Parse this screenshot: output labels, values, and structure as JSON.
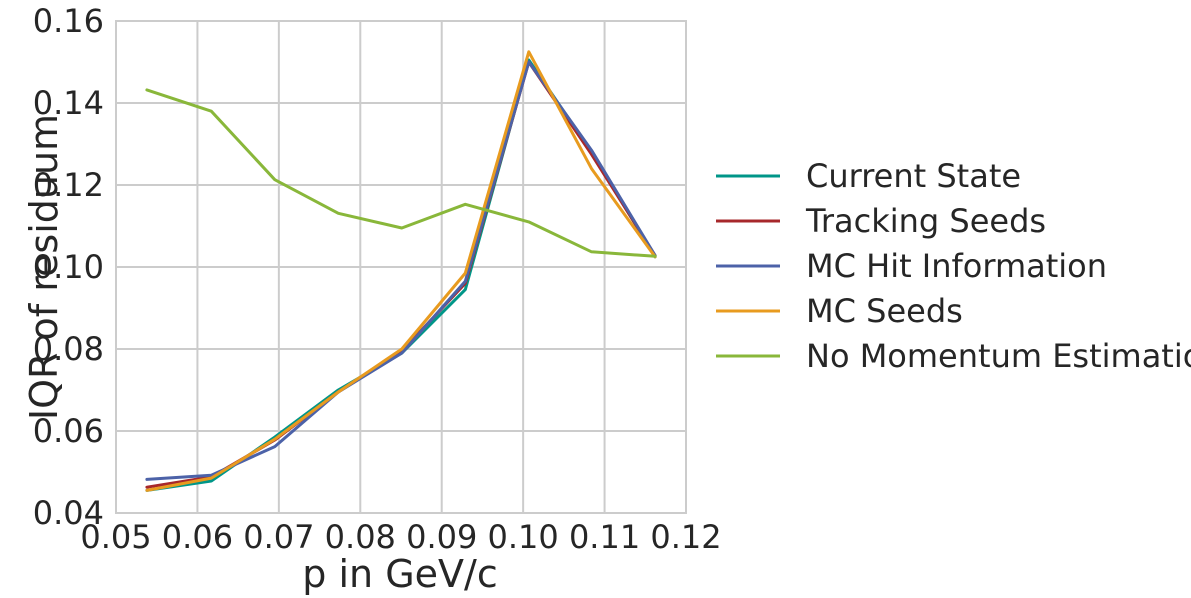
{
  "chart_data": {
    "type": "line",
    "xlabel": "p in GeV/c",
    "ylabel": "IQR of residuum",
    "xlim": [
      0.05,
      0.12
    ],
    "ylim": [
      0.04,
      0.16
    ],
    "xticks": [
      0.05,
      0.06,
      0.07,
      0.08,
      0.09,
      0.1,
      0.11,
      0.12
    ],
    "xtick_labels": [
      "0.05",
      "0.06",
      "0.07",
      "0.08",
      "0.09",
      "0.10",
      "0.11",
      "0.12"
    ],
    "yticks": [
      0.04,
      0.06,
      0.08,
      0.1,
      0.12,
      0.14,
      0.16
    ],
    "ytick_labels": [
      "0.04",
      "0.06",
      "0.08",
      "0.10",
      "0.12",
      "0.14",
      "0.16"
    ],
    "grid": true,
    "legend_position": "right-outside",
    "x": [
      0.0538,
      0.0617,
      0.0695,
      0.0773,
      0.0851,
      0.0929,
      0.1007,
      0.1084,
      0.1162
    ],
    "series": [
      {
        "name": "Current State",
        "color": "#009688",
        "values": [
          0.0455,
          0.0478,
          0.0585,
          0.07,
          0.079,
          0.0945,
          0.1505,
          0.128,
          0.1025
        ]
      },
      {
        "name": "Tracking Seeds",
        "color": "#a7282b",
        "values": [
          0.0463,
          0.0488,
          0.0578,
          0.0695,
          0.0795,
          0.096,
          0.15,
          0.1275,
          0.1028
        ]
      },
      {
        "name": "MC Hit Information",
        "color": "#4c62a8",
        "values": [
          0.0482,
          0.0492,
          0.0562,
          0.0695,
          0.079,
          0.0965,
          0.15,
          0.1285,
          0.1028
        ]
      },
      {
        "name": "MC Seeds",
        "color": "#e89b1f",
        "values": [
          0.0455,
          0.0485,
          0.058,
          0.0695,
          0.08,
          0.0985,
          0.1525,
          0.124,
          0.1025
        ]
      },
      {
        "name": "No Momentum Estimation",
        "color": "#89b73a",
        "values": [
          0.1432,
          0.138,
          0.1213,
          0.1131,
          0.1095,
          0.1153,
          0.111,
          0.1037,
          0.1026
        ]
      }
    ]
  }
}
